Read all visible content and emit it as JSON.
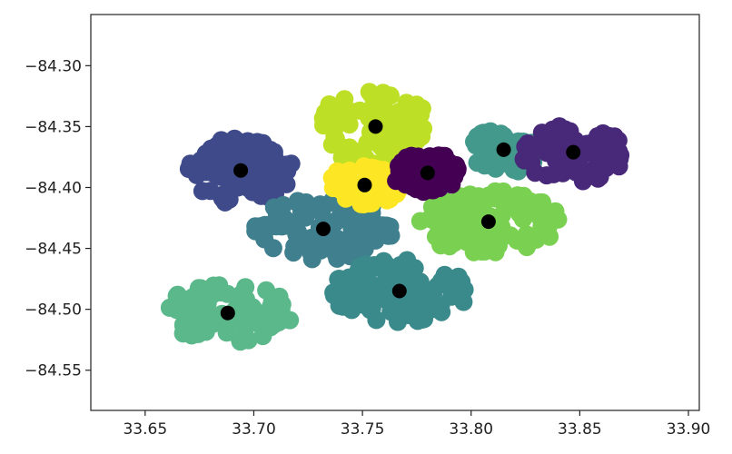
{
  "chart_data": {
    "type": "scatter",
    "title": "",
    "xlabel": "",
    "ylabel": "",
    "xlim": [
      33.625,
      33.905
    ],
    "ylim": [
      -84.583,
      -84.258
    ],
    "x_ticks": [
      33.65,
      33.7,
      33.75,
      33.8,
      33.85,
      33.9
    ],
    "x_tick_labels": [
      "33.65",
      "33.70",
      "33.75",
      "33.80",
      "33.85",
      "33.90"
    ],
    "y_ticks": [
      -84.3,
      -84.35,
      -84.4,
      -84.45,
      -84.5,
      -84.55
    ],
    "y_tick_labels": [
      "−84.30",
      "−84.35",
      "−84.40",
      "−84.45",
      "−84.50",
      "−84.55"
    ],
    "grid": false,
    "legend": "none",
    "clusters": [
      {
        "color": "#3e4a89",
        "center": [
          33.694,
          -84.386
        ],
        "spread": [
          0.024,
          0.028
        ],
        "count": 110
      },
      {
        "color": "#bddf26",
        "center": [
          33.756,
          -84.35
        ],
        "spread": [
          0.026,
          0.032
        ],
        "count": 90
      },
      {
        "color": "#3f7f8e",
        "center": [
          33.732,
          -84.434
        ],
        "spread": [
          0.032,
          0.026
        ],
        "count": 100
      },
      {
        "color": "#7ad151",
        "center": [
          33.808,
          -84.428
        ],
        "spread": [
          0.034,
          0.026
        ],
        "count": 100
      },
      {
        "color": "#5ab88a",
        "center": [
          33.688,
          -84.503
        ],
        "spread": [
          0.03,
          0.024
        ],
        "count": 90
      },
      {
        "color": "#3a8a8c",
        "center": [
          33.767,
          -84.485
        ],
        "spread": [
          0.032,
          0.026
        ],
        "count": 110
      },
      {
        "color": "#fde725",
        "center": [
          33.751,
          -84.398
        ],
        "spread": [
          0.018,
          0.016
        ],
        "count": 60
      },
      {
        "color": "#440154",
        "center": [
          33.78,
          -84.388
        ],
        "spread": [
          0.016,
          0.016
        ],
        "count": 60
      },
      {
        "color": "#43998c",
        "center": [
          33.815,
          -84.37
        ],
        "spread": [
          0.018,
          0.018
        ],
        "count": 60
      },
      {
        "color": "#482878",
        "center": [
          33.847,
          -84.372
        ],
        "spread": [
          0.024,
          0.024
        ],
        "count": 80
      }
    ],
    "centroids": {
      "color": "#000000",
      "points": [
        [
          33.694,
          -84.386
        ],
        [
          33.756,
          -84.35
        ],
        [
          33.732,
          -84.434
        ],
        [
          33.808,
          -84.428
        ],
        [
          33.688,
          -84.503
        ],
        [
          33.767,
          -84.485
        ],
        [
          33.751,
          -84.398
        ],
        [
          33.78,
          -84.388
        ],
        [
          33.815,
          -84.369
        ],
        [
          33.847,
          -84.371
        ]
      ]
    }
  }
}
